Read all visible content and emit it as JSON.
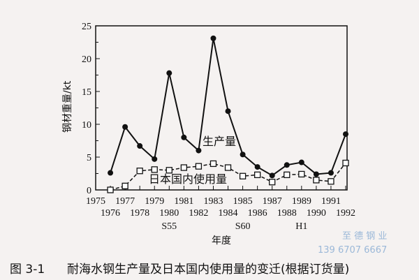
{
  "chart_data": {
    "type": "line",
    "title": "",
    "xlabel": "年度",
    "ylabel": "钢材重量/kt",
    "xlim": [
      1975,
      1992
    ],
    "ylim": [
      0,
      25
    ],
    "yticks": [
      "0",
      "5",
      "10",
      "15",
      "20",
      "25"
    ],
    "xticks": [
      "1975",
      "1976",
      "1977",
      "1978",
      "1979",
      "1980",
      "1981",
      "1982",
      "1983",
      "1984",
      "1985",
      "1986",
      "1987",
      "1988",
      "1989",
      "1990",
      "1991",
      "1992"
    ],
    "era_labels": [
      {
        "year": 1980,
        "label": "S55"
      },
      {
        "year": 1985,
        "label": "S60"
      },
      {
        "year": 1989,
        "label": "H1"
      }
    ],
    "grid": false,
    "x": [
      1976,
      1977,
      1978,
      1979,
      1980,
      1981,
      1982,
      1983,
      1984,
      1985,
      1986,
      1987,
      1988,
      1989,
      1990,
      1991,
      1992
    ],
    "series": [
      {
        "name": "生产量",
        "marker": "filled-circle",
        "line": "solid",
        "values": [
          2.6,
          9.6,
          6.7,
          4.7,
          17.8,
          8.0,
          6.0,
          23.1,
          12.0,
          5.4,
          3.5,
          2.2,
          3.8,
          4.2,
          2.4,
          2.6,
          8.5
        ]
      },
      {
        "name": "日本国内使用量",
        "marker": "open-square",
        "line": "dashed",
        "values": [
          0,
          0.6,
          2.9,
          3.1,
          3.0,
          3.4,
          3.6,
          4.0,
          3.4,
          2.1,
          2.3,
          1.2,
          2.3,
          2.4,
          1.5,
          1.3,
          4.1
        ]
      }
    ]
  },
  "caption": {
    "number": "图 3-1",
    "text": "耐海水钢生产量及日本国内使用量的变迁(根据订货量)"
  },
  "watermark": {
    "name": "至 德 钢 业",
    "phone": "139 6707 6667"
  }
}
